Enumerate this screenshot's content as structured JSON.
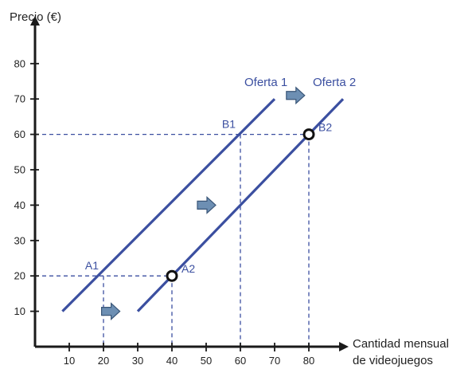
{
  "chart_data": {
    "type": "line",
    "ylabel": "Precio (€)",
    "xlabel_lines": [
      "Cantidad mensual",
      "de videojuegos"
    ],
    "xlim": [
      0,
      90
    ],
    "ylim": [
      0,
      90
    ],
    "xticks": [
      10,
      20,
      30,
      40,
      50,
      60,
      70,
      80
    ],
    "yticks": [
      10,
      20,
      30,
      40,
      50,
      60,
      70,
      80
    ],
    "grid": false,
    "series": [
      {
        "name": "Oferta 1",
        "x": [
          8,
          70
        ],
        "y": [
          10,
          70
        ]
      },
      {
        "name": "Oferta 2",
        "x": [
          30,
          90
        ],
        "y": [
          10,
          70
        ]
      }
    ],
    "points": [
      {
        "label": "A1",
        "x": 20,
        "y": 20,
        "marker": false
      },
      {
        "label": "A2",
        "x": 40,
        "y": 20,
        "marker": true
      },
      {
        "label": "B1",
        "x": 60,
        "y": 60,
        "marker": false
      },
      {
        "label": "B2",
        "x": 80,
        "y": 60,
        "marker": true
      }
    ],
    "shift_arrows": [
      {
        "x": 22,
        "y": 10
      },
      {
        "x": 50,
        "y": 40
      },
      {
        "x": 76,
        "y": 71
      }
    ],
    "colors": {
      "line": "#3b4fa0",
      "label": "#3b4fa0",
      "axis": "#1a1a1a",
      "arrow_fill": "#6d8fb3",
      "arrow_stroke": "#3a5678"
    }
  }
}
